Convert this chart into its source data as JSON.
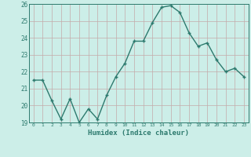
{
  "x": [
    0,
    1,
    2,
    3,
    4,
    5,
    6,
    7,
    8,
    9,
    10,
    11,
    12,
    13,
    14,
    15,
    16,
    17,
    18,
    19,
    20,
    21,
    22,
    23
  ],
  "y": [
    21.5,
    21.5,
    20.3,
    19.2,
    20.4,
    19.0,
    19.8,
    19.2,
    20.6,
    21.7,
    22.5,
    23.8,
    23.8,
    24.9,
    25.8,
    25.9,
    25.5,
    24.3,
    23.5,
    23.7,
    22.7,
    22.0,
    22.2,
    21.7
  ],
  "xlabel": "Humidex (Indice chaleur)",
  "ylim": [
    19,
    26
  ],
  "xlim": [
    -0.5,
    23.5
  ],
  "yticks": [
    19,
    20,
    21,
    22,
    23,
    24,
    25,
    26
  ],
  "xticks": [
    0,
    1,
    2,
    3,
    4,
    5,
    6,
    7,
    8,
    9,
    10,
    11,
    12,
    13,
    14,
    15,
    16,
    17,
    18,
    19,
    20,
    21,
    22,
    23
  ],
  "line_color": "#2d7a6e",
  "bg_color": "#cceee8",
  "grid_color": "#c4aaaa"
}
